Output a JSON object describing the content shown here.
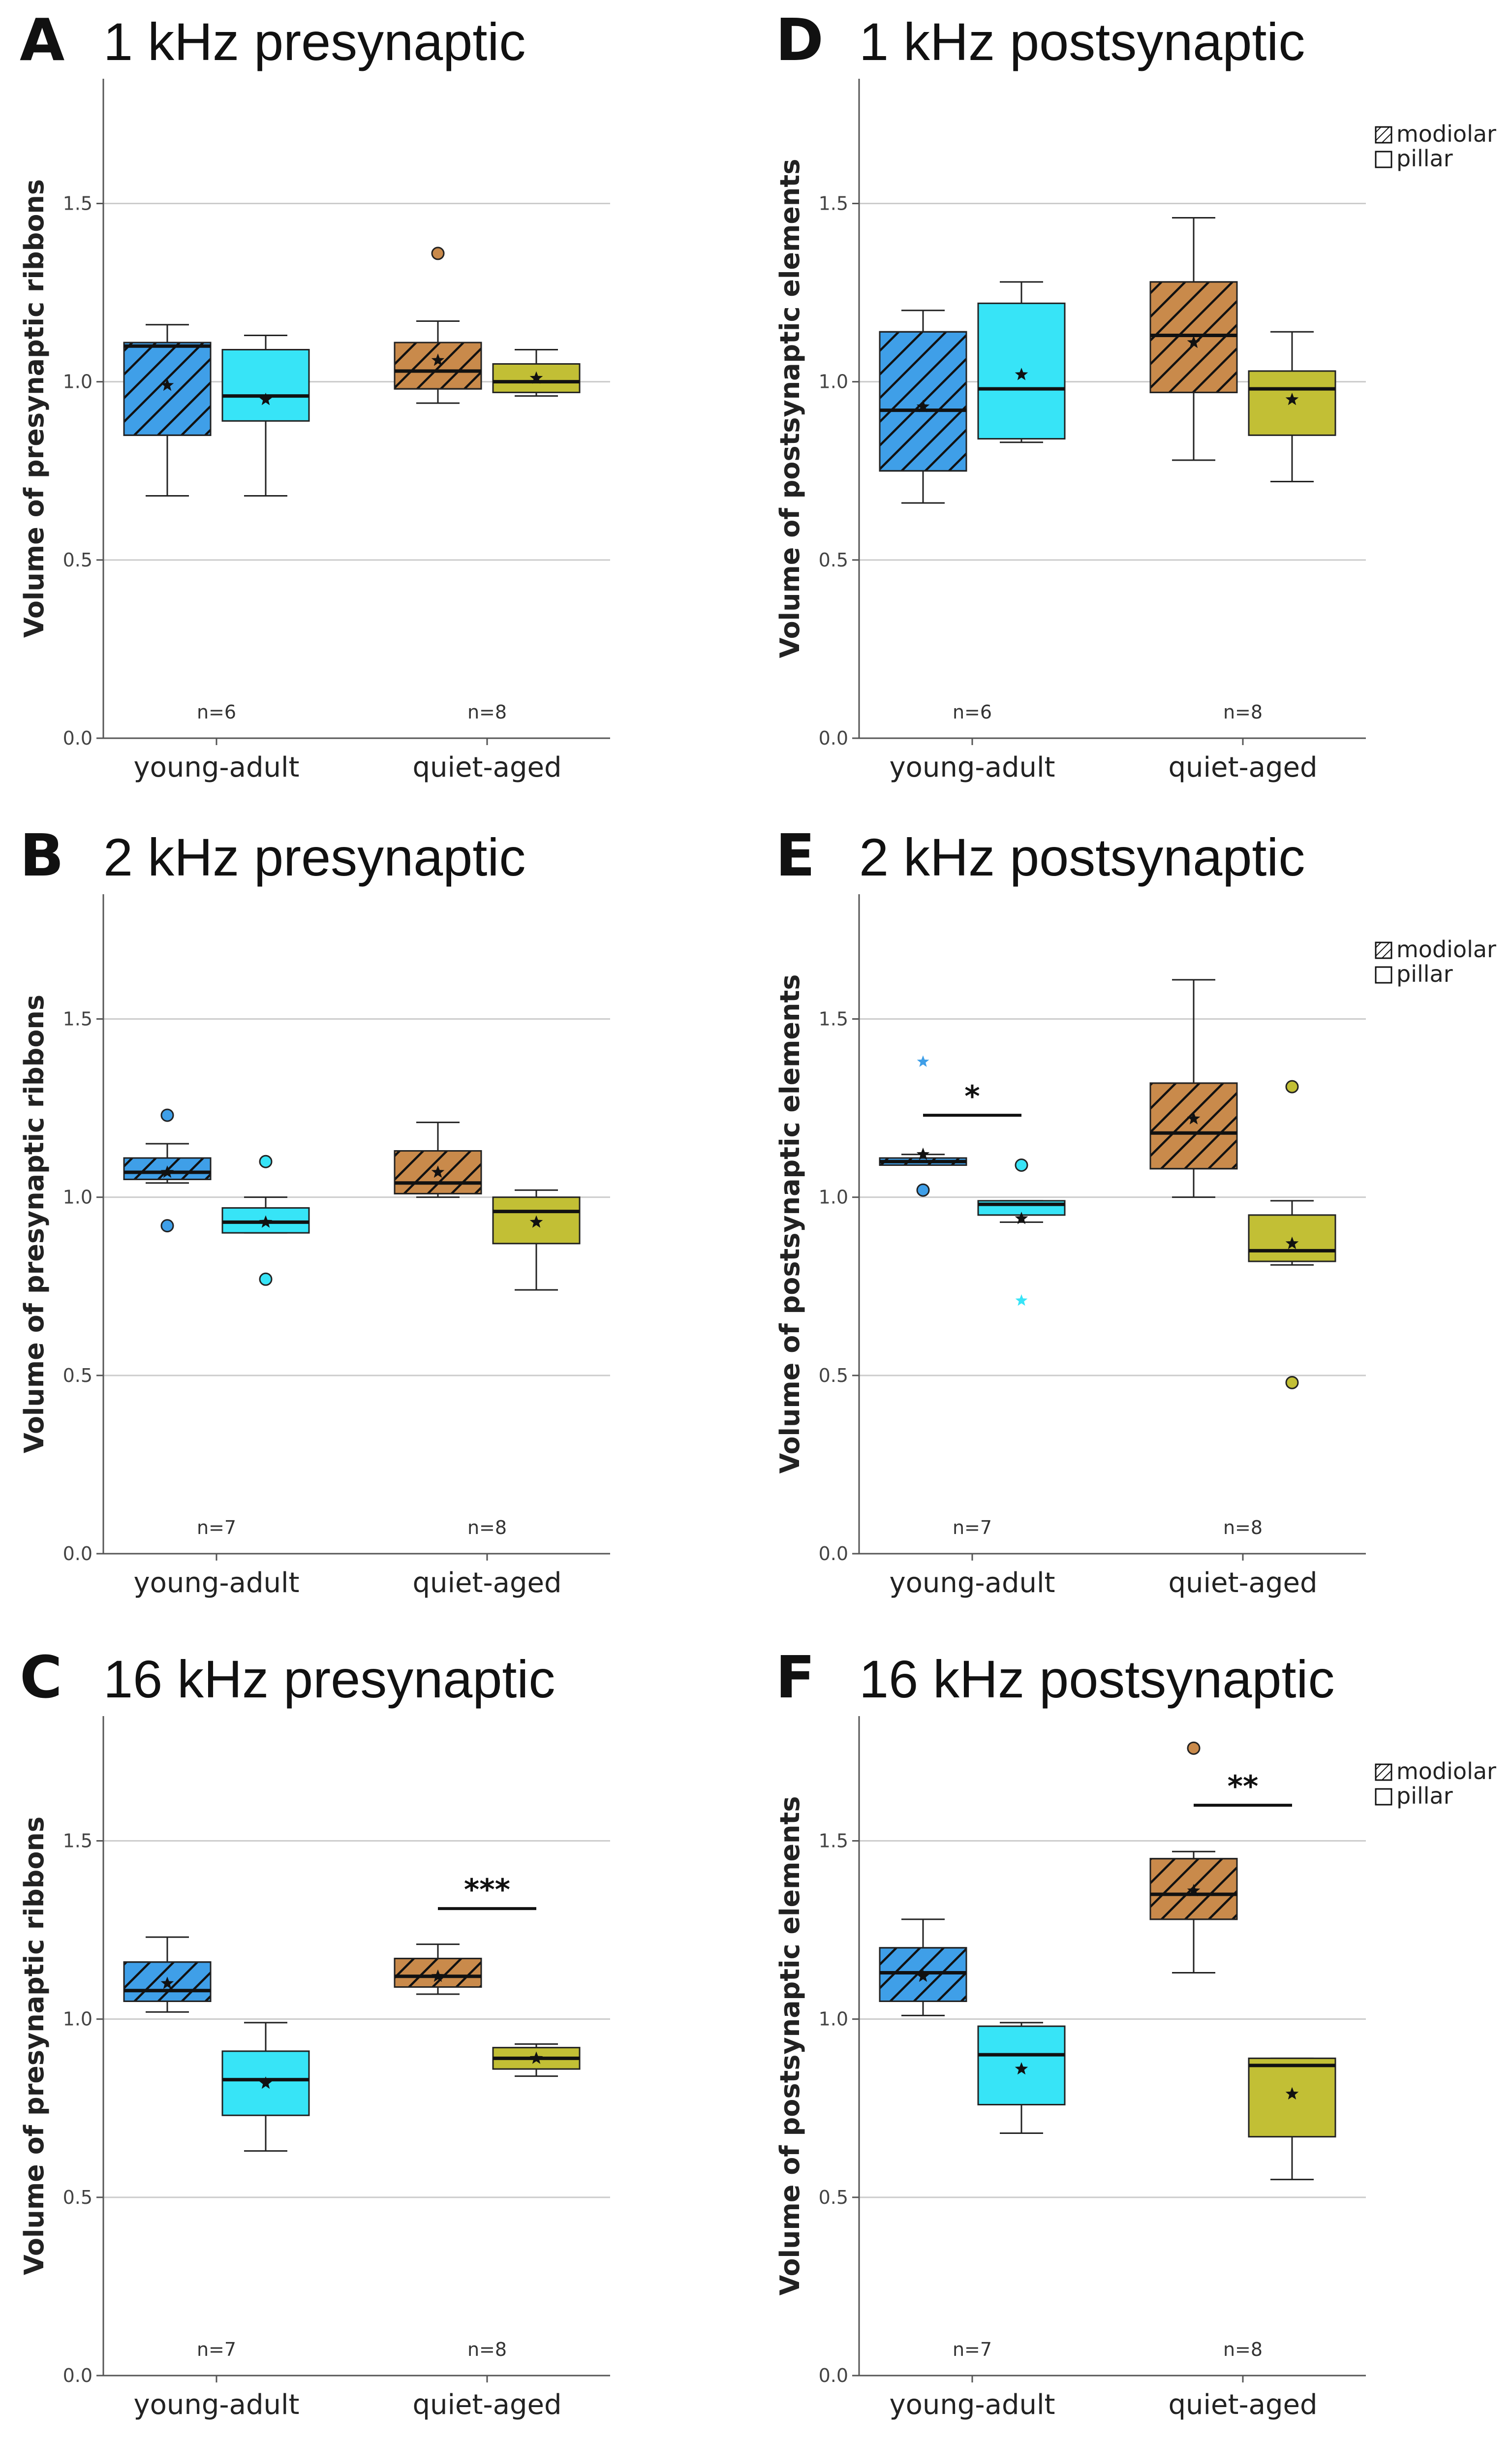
{
  "figure": {
    "colors": {
      "young_modiolar": "#3f9fe8",
      "young_pillar": "#37e4f7",
      "aged_modiolar": "#c98a4b",
      "aged_pillar": "#c2bf35",
      "grid": "#cccccc",
      "axis": "#555555",
      "box_edge": "#222222"
    },
    "legend": {
      "modiolar": "modiolar",
      "pillar": "pillar"
    }
  },
  "chart_data": [
    {
      "letter": "A",
      "title": "1 kHz presynaptic",
      "type": "box",
      "ylabel": "Volume of presynaptic ribbons",
      "ylim": [
        0,
        1.85
      ],
      "yticks": [
        "0.0",
        "0.5",
        "1.0",
        "1.5"
      ],
      "grid": true,
      "categories": [
        "young-adult",
        "quiet-aged"
      ],
      "n": [
        "n=6",
        "n=8"
      ],
      "legend": false,
      "significance": [],
      "boxes": [
        {
          "group": "young-adult",
          "series": "modiolar",
          "q1": 0.85,
          "median": 1.1,
          "q3": 1.11,
          "lo": 0.68,
          "hi": 1.16,
          "mean": 0.99,
          "outliers": []
        },
        {
          "group": "young-adult",
          "series": "pillar",
          "q1": 0.89,
          "median": 0.96,
          "q3": 1.09,
          "lo": 0.68,
          "hi": 1.13,
          "mean": 0.95,
          "outliers": []
        },
        {
          "group": "quiet-aged",
          "series": "modiolar",
          "q1": 0.98,
          "median": 1.03,
          "q3": 1.11,
          "lo": 0.94,
          "hi": 1.17,
          "mean": 1.06,
          "outliers": [
            {
              "v": 1.36,
              "type": "circle"
            }
          ]
        },
        {
          "group": "quiet-aged",
          "series": "pillar",
          "q1": 0.97,
          "median": 1.0,
          "q3": 1.05,
          "lo": 0.96,
          "hi": 1.09,
          "mean": 1.01,
          "outliers": []
        }
      ]
    },
    {
      "letter": "D",
      "title": "1 kHz postsynaptic",
      "type": "box",
      "ylabel": "Volume of postsynaptic elements",
      "ylim": [
        0,
        1.85
      ],
      "yticks": [
        "0.0",
        "0.5",
        "1.0",
        "1.5"
      ],
      "grid": true,
      "categories": [
        "young-adult",
        "quiet-aged"
      ],
      "n": [
        "n=6",
        "n=8"
      ],
      "legend": true,
      "significance": [],
      "boxes": [
        {
          "group": "young-adult",
          "series": "modiolar",
          "q1": 0.75,
          "median": 0.92,
          "q3": 1.14,
          "lo": 0.66,
          "hi": 1.2,
          "mean": 0.93,
          "outliers": []
        },
        {
          "group": "young-adult",
          "series": "pillar",
          "q1": 0.84,
          "median": 0.98,
          "q3": 1.22,
          "lo": 0.83,
          "hi": 1.28,
          "mean": 1.02,
          "outliers": []
        },
        {
          "group": "quiet-aged",
          "series": "modiolar",
          "q1": 0.97,
          "median": 1.13,
          "q3": 1.28,
          "lo": 0.78,
          "hi": 1.46,
          "mean": 1.11,
          "outliers": []
        },
        {
          "group": "quiet-aged",
          "series": "pillar",
          "q1": 0.85,
          "median": 0.98,
          "q3": 1.03,
          "lo": 0.72,
          "hi": 1.14,
          "mean": 0.95,
          "outliers": []
        }
      ]
    },
    {
      "letter": "B",
      "title": "2 kHz presynaptic",
      "type": "box",
      "ylabel": "Volume of presynaptic ribbons",
      "ylim": [
        0,
        1.85
      ],
      "yticks": [
        "0.0",
        "0.5",
        "1.0",
        "1.5"
      ],
      "grid": true,
      "categories": [
        "young-adult",
        "quiet-aged"
      ],
      "n": [
        "n=7",
        "n=8"
      ],
      "legend": false,
      "significance": [],
      "boxes": [
        {
          "group": "young-adult",
          "series": "modiolar",
          "q1": 1.05,
          "median": 1.07,
          "q3": 1.11,
          "lo": 1.04,
          "hi": 1.15,
          "mean": 1.07,
          "outliers": [
            {
              "v": 1.23,
              "type": "circle"
            },
            {
              "v": 0.92,
              "type": "circle"
            }
          ]
        },
        {
          "group": "young-adult",
          "series": "pillar",
          "q1": 0.9,
          "median": 0.93,
          "q3": 0.97,
          "lo": 0.9,
          "hi": 1.0,
          "mean": 0.93,
          "outliers": [
            {
              "v": 1.1,
              "type": "circle"
            },
            {
              "v": 0.77,
              "type": "circle"
            }
          ]
        },
        {
          "group": "quiet-aged",
          "series": "modiolar",
          "q1": 1.01,
          "median": 1.04,
          "q3": 1.13,
          "lo": 1.0,
          "hi": 1.21,
          "mean": 1.07,
          "outliers": []
        },
        {
          "group": "quiet-aged",
          "series": "pillar",
          "q1": 0.87,
          "median": 0.96,
          "q3": 1.0,
          "lo": 0.74,
          "hi": 1.02,
          "mean": 0.93,
          "outliers": []
        }
      ]
    },
    {
      "letter": "E",
      "title": "2 kHz postsynaptic",
      "type": "box",
      "ylabel": "Volume of postsynaptic elements",
      "ylim": [
        0,
        1.85
      ],
      "yticks": [
        "0.0",
        "0.5",
        "1.0",
        "1.5"
      ],
      "grid": true,
      "categories": [
        "young-adult",
        "quiet-aged"
      ],
      "n": [
        "n=7",
        "n=8"
      ],
      "legend": true,
      "significance": [
        {
          "group": "young-adult",
          "label": "*",
          "y": 1.23
        }
      ],
      "boxes": [
        {
          "group": "young-adult",
          "series": "modiolar",
          "q1": 1.09,
          "median": 1.1,
          "q3": 1.11,
          "lo": 1.09,
          "hi": 1.12,
          "mean": 1.12,
          "outliers": [
            {
              "v": 1.38,
              "type": "star"
            },
            {
              "v": 1.02,
              "type": "circle"
            }
          ]
        },
        {
          "group": "young-adult",
          "series": "pillar",
          "q1": 0.95,
          "median": 0.98,
          "q3": 0.99,
          "lo": 0.93,
          "hi": 0.99,
          "mean": 0.94,
          "outliers": [
            {
              "v": 1.09,
              "type": "circle"
            },
            {
              "v": 0.71,
              "type": "star"
            }
          ]
        },
        {
          "group": "quiet-aged",
          "series": "modiolar",
          "q1": 1.08,
          "median": 1.18,
          "q3": 1.32,
          "lo": 1.0,
          "hi": 1.61,
          "mean": 1.22,
          "outliers": []
        },
        {
          "group": "quiet-aged",
          "series": "pillar",
          "q1": 0.82,
          "median": 0.85,
          "q3": 0.95,
          "lo": 0.81,
          "hi": 0.99,
          "mean": 0.87,
          "outliers": [
            {
              "v": 1.31,
              "type": "circle"
            },
            {
              "v": 0.48,
              "type": "circle"
            }
          ]
        }
      ]
    },
    {
      "letter": "C",
      "title": "16 kHz presynaptic",
      "type": "box",
      "ylabel": "Volume of presynaptic ribbons",
      "ylim": [
        0,
        1.85
      ],
      "yticks": [
        "0.0",
        "0.5",
        "1.0",
        "1.5"
      ],
      "grid": true,
      "categories": [
        "young-adult",
        "quiet-aged"
      ],
      "n": [
        "n=7",
        "n=8"
      ],
      "legend": false,
      "significance": [
        {
          "group": "quiet-aged",
          "label": "***",
          "y": 1.31
        }
      ],
      "boxes": [
        {
          "group": "young-adult",
          "series": "modiolar",
          "q1": 1.05,
          "median": 1.08,
          "q3": 1.16,
          "lo": 1.02,
          "hi": 1.23,
          "mean": 1.1,
          "outliers": []
        },
        {
          "group": "young-adult",
          "series": "pillar",
          "q1": 0.73,
          "median": 0.83,
          "q3": 0.91,
          "lo": 0.63,
          "hi": 0.99,
          "mean": 0.82,
          "outliers": []
        },
        {
          "group": "quiet-aged",
          "series": "modiolar",
          "q1": 1.09,
          "median": 1.12,
          "q3": 1.17,
          "lo": 1.07,
          "hi": 1.21,
          "mean": 1.12,
          "outliers": []
        },
        {
          "group": "quiet-aged",
          "series": "pillar",
          "q1": 0.86,
          "median": 0.89,
          "q3": 0.92,
          "lo": 0.84,
          "hi": 0.93,
          "mean": 0.89,
          "outliers": []
        }
      ]
    },
    {
      "letter": "F",
      "title": "16 kHz postsynaptic",
      "type": "box",
      "ylabel": "Volume of postsynaptic elements",
      "ylim": [
        0,
        1.85
      ],
      "yticks": [
        "0.0",
        "0.5",
        "1.0",
        "1.5"
      ],
      "grid": true,
      "categories": [
        "young-adult",
        "quiet-aged"
      ],
      "n": [
        "n=7",
        "n=8"
      ],
      "legend": true,
      "significance": [
        {
          "group": "quiet-aged",
          "label": "**",
          "y": 1.6
        }
      ],
      "boxes": [
        {
          "group": "young-adult",
          "series": "modiolar",
          "q1": 1.05,
          "median": 1.13,
          "q3": 1.2,
          "lo": 1.01,
          "hi": 1.28,
          "mean": 1.12,
          "outliers": []
        },
        {
          "group": "young-adult",
          "series": "pillar",
          "q1": 0.76,
          "median": 0.9,
          "q3": 0.98,
          "lo": 0.68,
          "hi": 0.99,
          "mean": 0.86,
          "outliers": []
        },
        {
          "group": "quiet-aged",
          "series": "modiolar",
          "q1": 1.28,
          "median": 1.35,
          "q3": 1.45,
          "lo": 1.13,
          "hi": 1.47,
          "mean": 1.36,
          "outliers": [
            {
              "v": 1.76,
              "type": "circle"
            }
          ]
        },
        {
          "group": "quiet-aged",
          "series": "pillar",
          "q1": 0.67,
          "median": 0.87,
          "q3": 0.89,
          "lo": 0.55,
          "hi": 0.89,
          "mean": 0.79,
          "outliers": []
        }
      ]
    }
  ]
}
